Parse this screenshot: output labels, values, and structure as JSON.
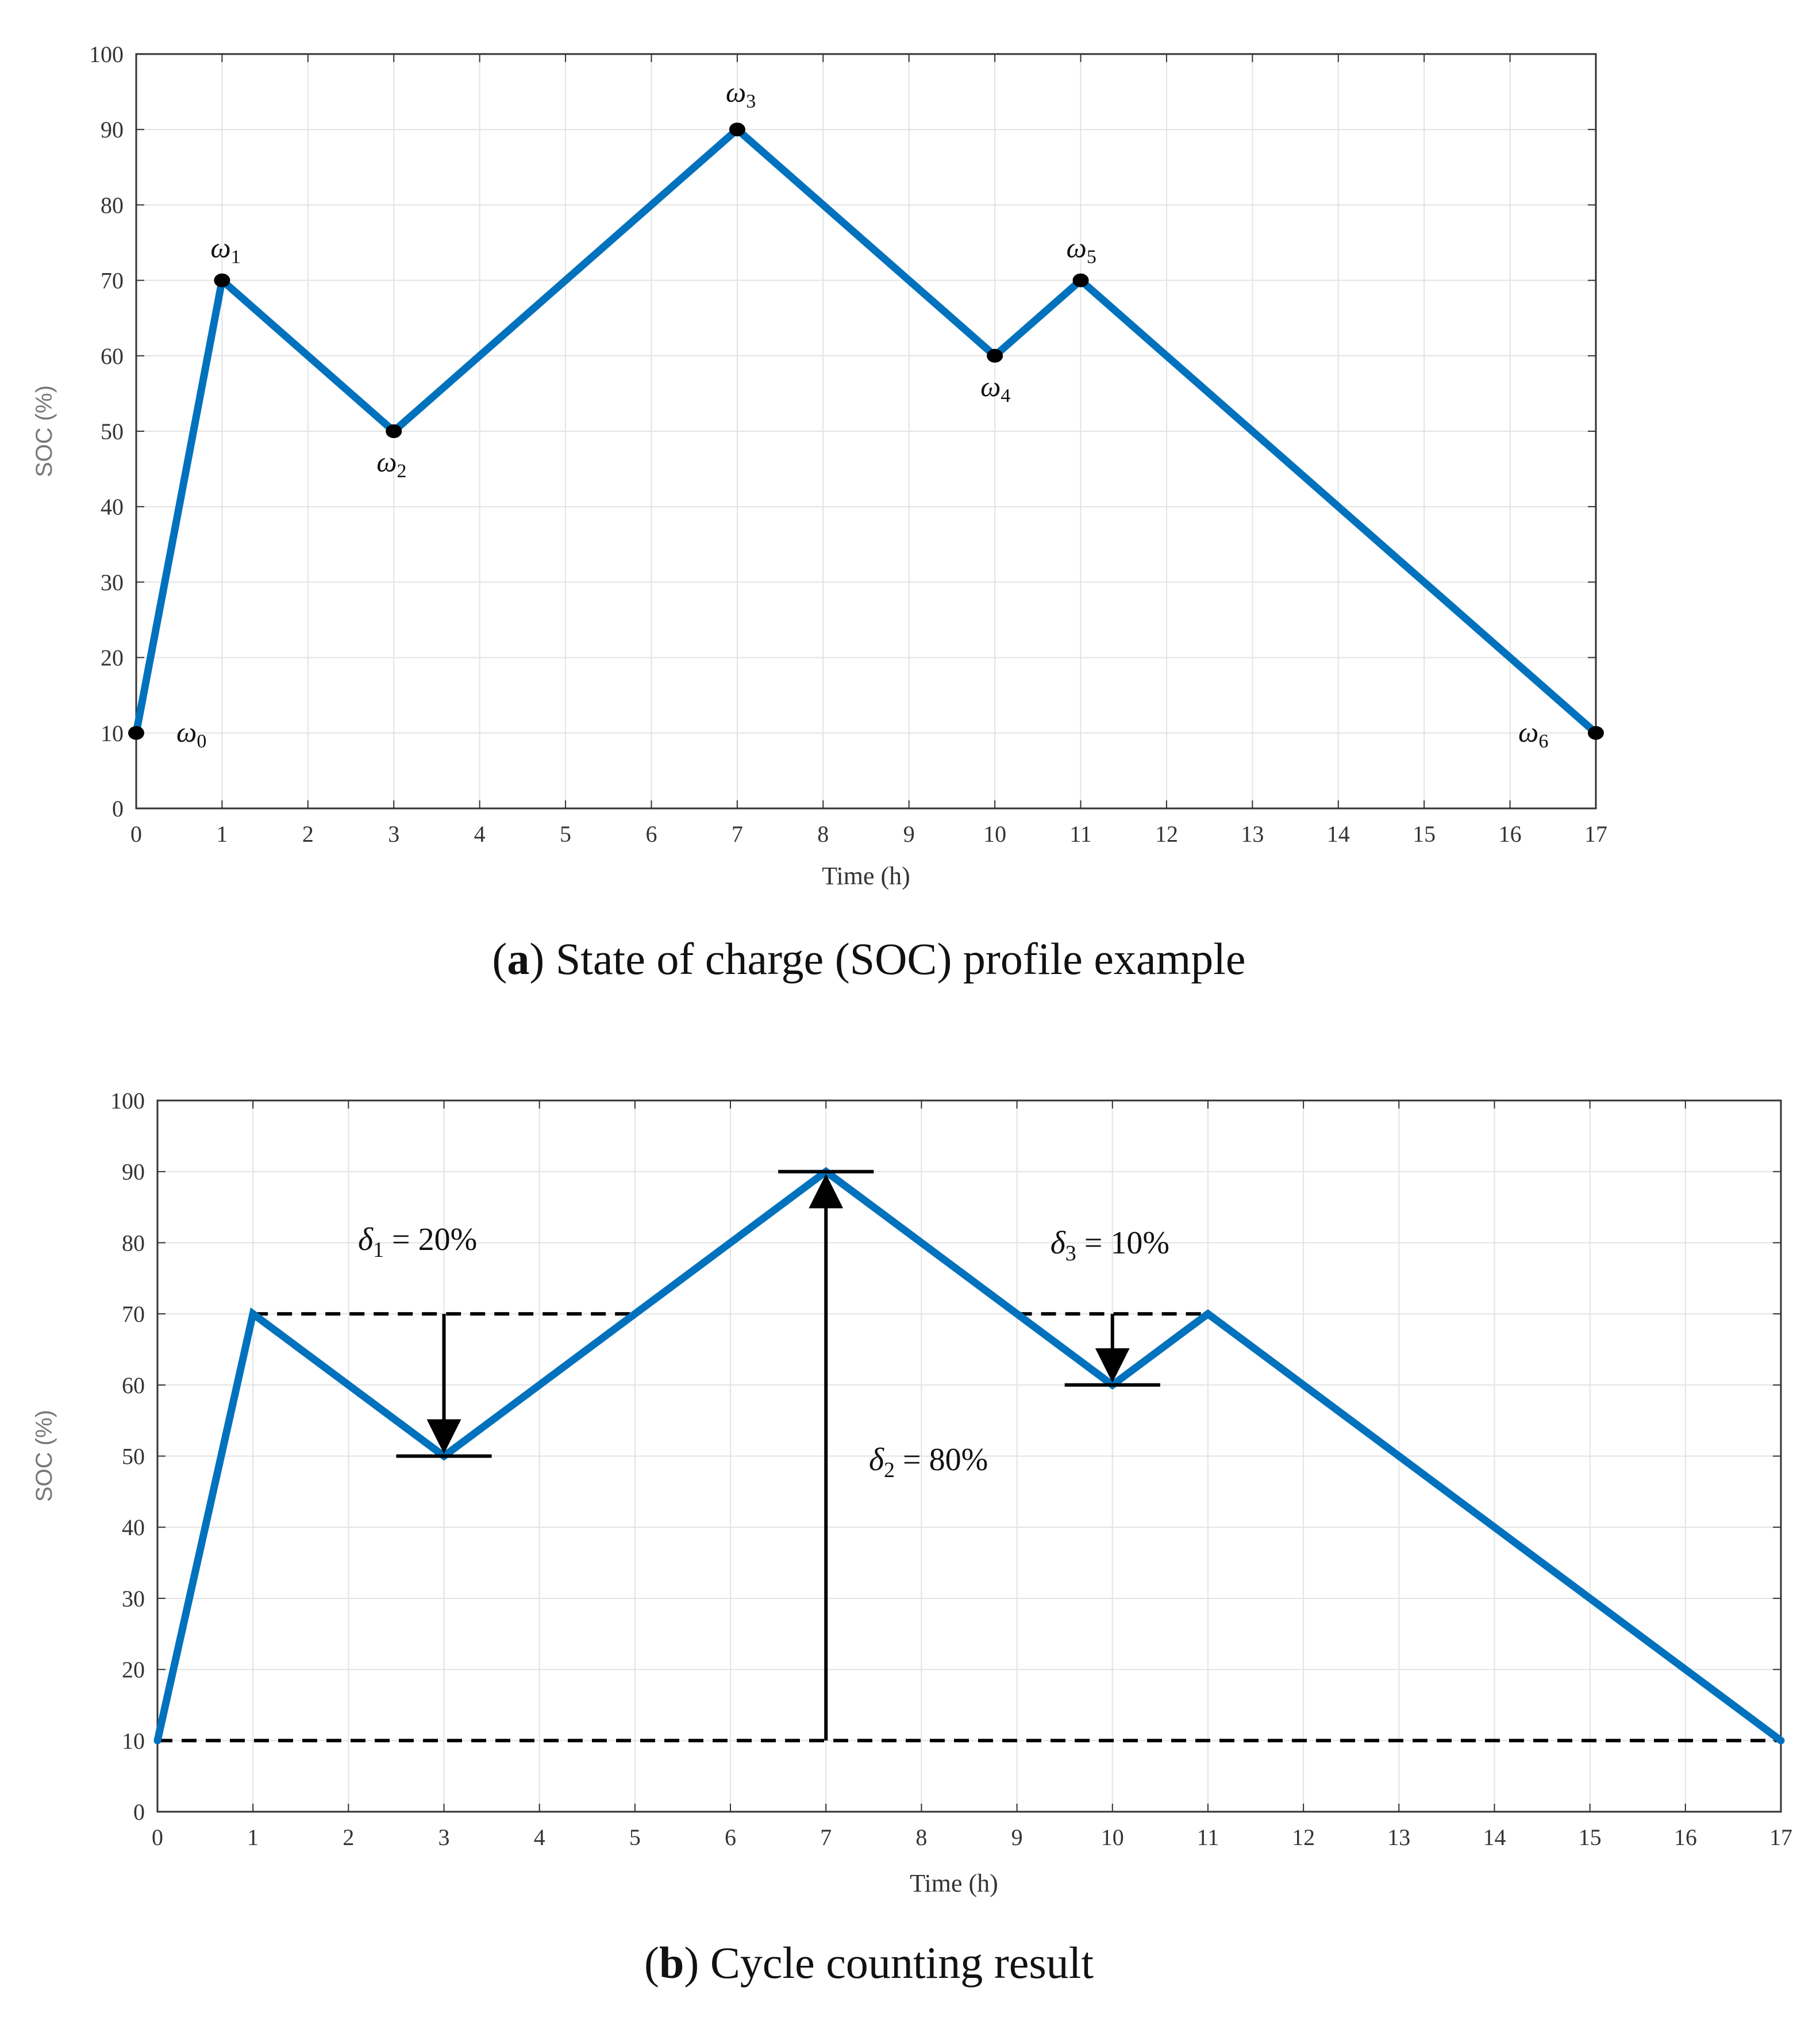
{
  "colors": {
    "series": "#0072BD",
    "grid": "#e3e3e3",
    "axis": "#333333",
    "marker": "#000000"
  },
  "chart_data": [
    {
      "type": "line",
      "id": "a",
      "xlabel": "Time (h)",
      "ylabel": "SOC (%)",
      "xlim": [
        0,
        17
      ],
      "ylim": [
        0,
        100
      ],
      "xticks": [
        "0",
        "1",
        "2",
        "3",
        "4",
        "5",
        "6",
        "7",
        "8",
        "9",
        "10",
        "11",
        "12",
        "13",
        "14",
        "15",
        "16",
        "17"
      ],
      "yticks": [
        "0",
        "10",
        "20",
        "30",
        "40",
        "50",
        "60",
        "70",
        "80",
        "90",
        "100"
      ],
      "grid": true,
      "x": [
        0,
        1,
        3,
        7,
        10,
        11,
        17
      ],
      "y": [
        10,
        70,
        50,
        90,
        60,
        70,
        10
      ],
      "point_labels": [
        {
          "base": "ω",
          "sub": "0",
          "x": 0,
          "y": 10
        },
        {
          "base": "ω",
          "sub": "1",
          "x": 1,
          "y": 70
        },
        {
          "base": "ω",
          "sub": "2",
          "x": 3,
          "y": 50
        },
        {
          "base": "ω",
          "sub": "3",
          "x": 7,
          "y": 90
        },
        {
          "base": "ω",
          "sub": "4",
          "x": 10,
          "y": 60
        },
        {
          "base": "ω",
          "sub": "5",
          "x": 11,
          "y": 70
        },
        {
          "base": "ω",
          "sub": "6",
          "x": 17,
          "y": 10
        }
      ],
      "caption": {
        "letter": "a",
        "text": " State of charge (SOC) profile example"
      }
    },
    {
      "type": "line",
      "id": "b",
      "xlabel": "Time (h)",
      "ylabel": "SOC (%)",
      "xlim": [
        0,
        17
      ],
      "ylim": [
        0,
        100
      ],
      "xticks": [
        "0",
        "1",
        "2",
        "3",
        "4",
        "5",
        "6",
        "7",
        "8",
        "9",
        "10",
        "11",
        "12",
        "13",
        "14",
        "15",
        "16",
        "17"
      ],
      "yticks": [
        "0",
        "10",
        "20",
        "30",
        "40",
        "50",
        "60",
        "70",
        "80",
        "90",
        "100"
      ],
      "grid": true,
      "x": [
        0,
        1,
        3,
        7,
        10,
        11,
        17
      ],
      "y": [
        10,
        70,
        50,
        90,
        60,
        70,
        10
      ],
      "dashed_lines": [
        {
          "x1": 1,
          "x2": 5,
          "y": 70
        },
        {
          "x1": 9,
          "x2": 11,
          "y": 70
        },
        {
          "x1": 0,
          "x2": 17,
          "y": 10
        }
      ],
      "cycles": [
        {
          "x": 3,
          "from": 70,
          "to": 50,
          "cap_x1": 2.5,
          "cap_x2": 3.5,
          "cap_y": 50,
          "label": {
            "base": "δ",
            "sub": "1",
            "value": " = 20%",
            "x": 2.1,
            "y": 79
          }
        },
        {
          "x": 7,
          "from": 10,
          "to": 90,
          "cap_x1": 6.5,
          "cap_x2": 7.5,
          "cap_y": 90,
          "label": {
            "base": "δ",
            "sub": "2",
            "value": " = 80%",
            "x": 7.45,
            "y": 48
          }
        },
        {
          "x": 10,
          "from": 70,
          "to": 60,
          "cap_x1": 9.5,
          "cap_x2": 10.5,
          "cap_y": 60,
          "label": {
            "base": "δ",
            "sub": "3",
            "value": " = 10%",
            "x": 9.35,
            "y": 78.5
          }
        }
      ],
      "caption": {
        "letter": "b",
        "text": " Cycle counting result"
      }
    }
  ]
}
